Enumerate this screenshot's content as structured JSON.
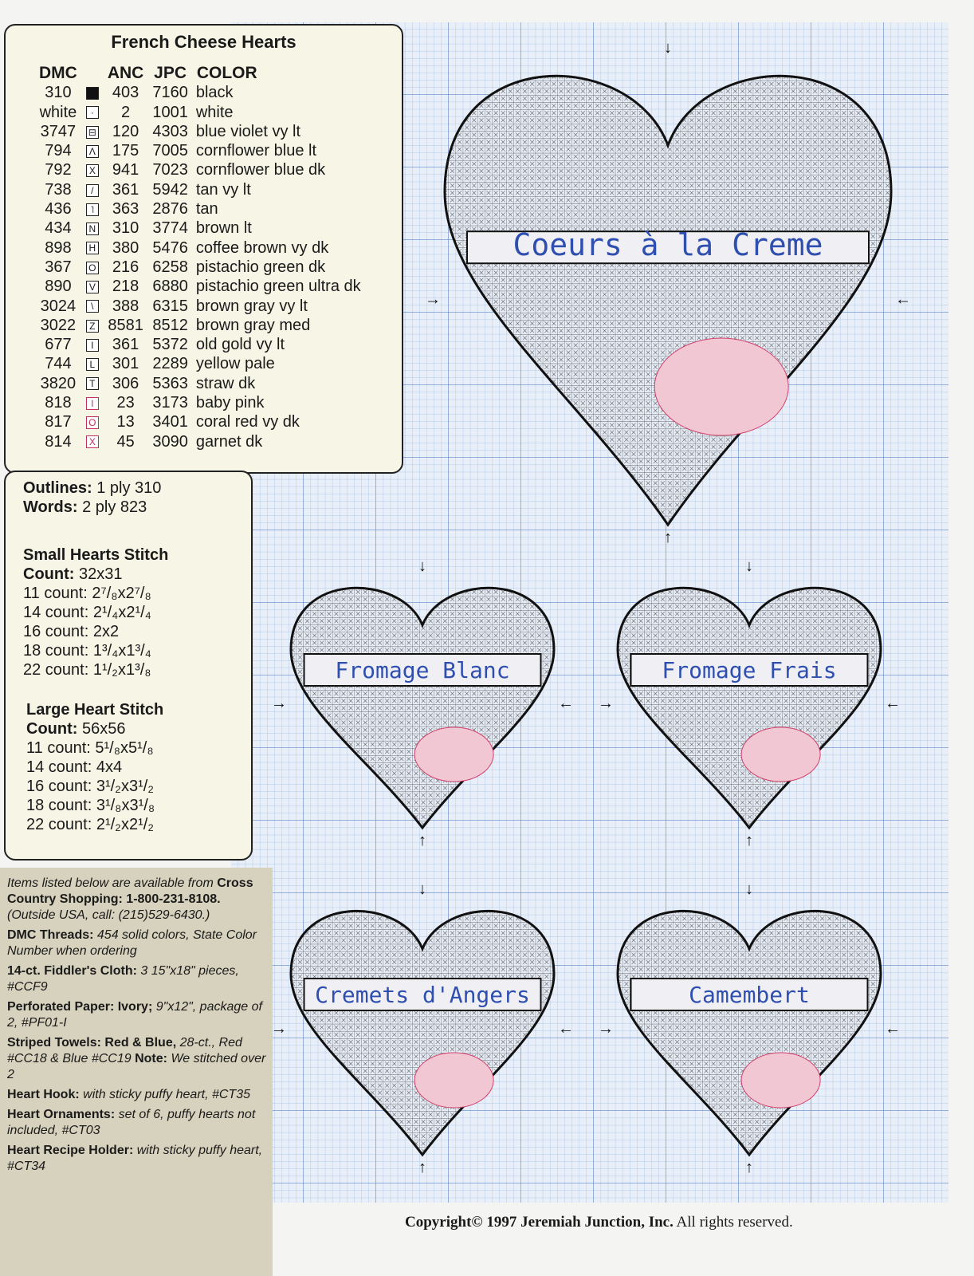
{
  "legend": {
    "title": "French Cheese Hearts",
    "headers": [
      "DMC",
      "",
      "ANC",
      "JPC",
      "COLOR"
    ],
    "rows": [
      {
        "dmc": "310",
        "symbol": "■",
        "anc": "403",
        "jpc": "7160",
        "color": "black"
      },
      {
        "dmc": "white",
        "symbol": "·",
        "anc": "2",
        "jpc": "1001",
        "color": "white"
      },
      {
        "dmc": "3747",
        "symbol": "⊟",
        "anc": "120",
        "jpc": "4303",
        "color": "blue violet vy lt"
      },
      {
        "dmc": "794",
        "symbol": "Λ",
        "anc": "175",
        "jpc": "7005",
        "color": "cornflower blue lt"
      },
      {
        "dmc": "792",
        "symbol": "X",
        "anc": "941",
        "jpc": "7023",
        "color": "cornflower blue dk"
      },
      {
        "dmc": "738",
        "symbol": "/",
        "anc": "361",
        "jpc": "5942",
        "color": "tan vy lt"
      },
      {
        "dmc": "436",
        "symbol": "˥",
        "anc": "363",
        "jpc": "2876",
        "color": "tan"
      },
      {
        "dmc": "434",
        "symbol": "N",
        "anc": "310",
        "jpc": "3774",
        "color": "brown lt"
      },
      {
        "dmc": "898",
        "symbol": "H",
        "anc": "380",
        "jpc": "5476",
        "color": "coffee brown vy dk"
      },
      {
        "dmc": "367",
        "symbol": "O",
        "anc": "216",
        "jpc": "6258",
        "color": "pistachio green dk"
      },
      {
        "dmc": "890",
        "symbol": "V",
        "anc": "218",
        "jpc": "6880",
        "color": "pistachio green ultra dk"
      },
      {
        "dmc": "3024",
        "symbol": "\\",
        "anc": "388",
        "jpc": "6315",
        "color": "brown gray vy lt"
      },
      {
        "dmc": "3022",
        "symbol": "Z",
        "anc": "8581",
        "jpc": "8512",
        "color": "brown gray med"
      },
      {
        "dmc": "677",
        "symbol": "I",
        "anc": "361",
        "jpc": "5372",
        "color": "old gold vy lt"
      },
      {
        "dmc": "744",
        "symbol": "L",
        "anc": "301",
        "jpc": "2289",
        "color": "yellow pale"
      },
      {
        "dmc": "3820",
        "symbol": "T",
        "anc": "306",
        "jpc": "5363",
        "color": "straw dk"
      },
      {
        "dmc": "818",
        "symbol": "I",
        "anc": "23",
        "jpc": "3173",
        "color": "baby pink",
        "symbol_color": "#c0305a"
      },
      {
        "dmc": "817",
        "symbol": "O",
        "anc": "13",
        "jpc": "3401",
        "color": "coral red vy dk",
        "symbol_color": "#c0305a"
      },
      {
        "dmc": "814",
        "symbol": "X",
        "anc": "45",
        "jpc": "3090",
        "color": "garnet dk",
        "symbol_color": "#c0305a"
      }
    ]
  },
  "info": {
    "outlines_label": "Outlines:",
    "outlines_value": "1 ply 310",
    "words_label": "Words:",
    "words_value": "2 ply 823",
    "small_title": "Small Hearts Stitch",
    "small_count_label": "Count:",
    "small_count_value": "32x31",
    "small_sizes": [
      "11 count: 2⁷/₈x2⁷/₈",
      "14 count: 2¹/₄x2¹/₄",
      "16 count: 2x2",
      "18 count: 1³/₄x1³/₄",
      "22 count: 1¹/₂x1³/₈"
    ],
    "large_title": "Large Heart Stitch",
    "large_count_label": "Count:",
    "large_count_value": "56x56",
    "large_sizes": [
      "11 count: 5¹/₈x5¹/₈",
      "14 count: 4x4",
      "16 count: 3¹/₂x3¹/₂",
      "18 count: 3¹/₈x3¹/₈",
      "22 count: 2¹/₂x2¹/₂"
    ]
  },
  "shopping": {
    "intro_italic": "Items listed below are available from",
    "intro_bold": "Cross Country Shopping: 1-800-231-8108.",
    "intro_outside": "(Outside USA, call: (215)529-6430.)",
    "items": [
      {
        "label": "DMC Threads:",
        "detail": "454 solid colors, State Color Number when ordering"
      },
      {
        "label": "14-ct. Fiddler's Cloth:",
        "detail": "3 15\"x18\" pieces, #CCF9"
      },
      {
        "label": "Perforated Paper: Ivory;",
        "detail": "9\"x12\", package of 2, #PF01-I"
      },
      {
        "label": "Striped Towels: Red & Blue,",
        "detail": "28-ct., Red #CC18 & Blue #CC19",
        "note_label": "Note:",
        "note": "We stitched over 2"
      },
      {
        "label": "Heart Hook:",
        "detail": "with sticky puffy heart, #CT35"
      },
      {
        "label": "Heart Ornaments:",
        "detail": "set of 6, puffy hearts not included, #CT03"
      },
      {
        "label": "Heart Recipe Holder:",
        "detail": "with sticky puffy heart, #CT34"
      }
    ]
  },
  "chart": {
    "grid_color": "#8fb0dc",
    "outline_color": "#111111",
    "word_color": "#2f4fb0",
    "pink_color": "#d0406a",
    "hearts": [
      {
        "size": "large",
        "word": "Coeurs à la Creme"
      },
      {
        "size": "small",
        "word": "Fromage Blanc"
      },
      {
        "size": "small",
        "word": "Fromage Frais"
      },
      {
        "size": "small",
        "word": "Cremets d'Angers"
      },
      {
        "size": "small",
        "word": "Camembert"
      }
    ]
  },
  "copyright": {
    "bold": "Copyright© 1997 Jeremiah Junction, Inc.",
    "rest": " All rights reserved."
  }
}
